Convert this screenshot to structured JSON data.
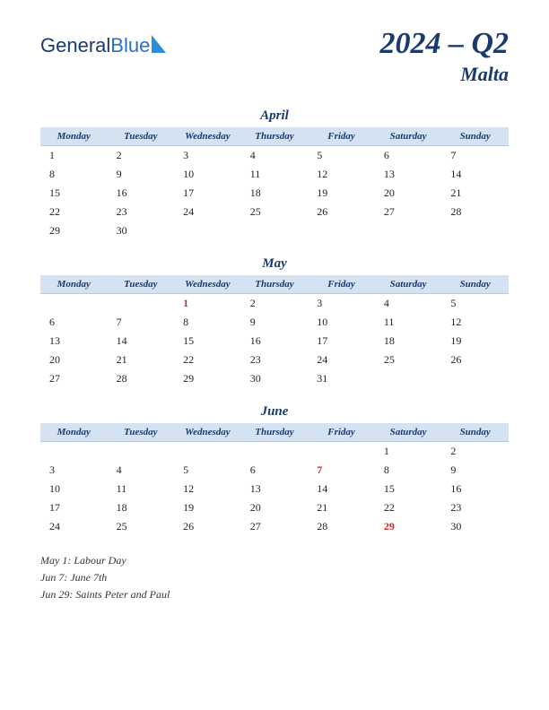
{
  "logo": {
    "part1": "General",
    "part2": "Blue"
  },
  "title": {
    "main": "2024 – Q2",
    "sub": "Malta"
  },
  "day_headers": [
    "Monday",
    "Tuesday",
    "Wednesday",
    "Thursday",
    "Friday",
    "Saturday",
    "Sunday"
  ],
  "colors": {
    "header_bg": "#d5e2f2",
    "text_dark": "#1a3a6e",
    "holiday": "#c92a2a"
  },
  "months": [
    {
      "name": "April",
      "weeks": [
        [
          "1",
          "2",
          "3",
          "4",
          "5",
          "6",
          "7"
        ],
        [
          "8",
          "9",
          "10",
          "11",
          "12",
          "13",
          "14"
        ],
        [
          "15",
          "16",
          "17",
          "18",
          "19",
          "20",
          "21"
        ],
        [
          "22",
          "23",
          "24",
          "25",
          "26",
          "27",
          "28"
        ],
        [
          "29",
          "30",
          "",
          "",
          "",
          "",
          ""
        ]
      ],
      "holidays": []
    },
    {
      "name": "May",
      "weeks": [
        [
          "",
          "",
          "1",
          "2",
          "3",
          "4",
          "5"
        ],
        [
          "6",
          "7",
          "8",
          "9",
          "10",
          "11",
          "12"
        ],
        [
          "13",
          "14",
          "15",
          "16",
          "17",
          "18",
          "19"
        ],
        [
          "20",
          "21",
          "22",
          "23",
          "24",
          "25",
          "26"
        ],
        [
          "27",
          "28",
          "29",
          "30",
          "31",
          "",
          ""
        ]
      ],
      "holidays": [
        "1"
      ]
    },
    {
      "name": "June",
      "weeks": [
        [
          "",
          "",
          "",
          "",
          "",
          "1",
          "2"
        ],
        [
          "3",
          "4",
          "5",
          "6",
          "7",
          "8",
          "9"
        ],
        [
          "10",
          "11",
          "12",
          "13",
          "14",
          "15",
          "16"
        ],
        [
          "17",
          "18",
          "19",
          "20",
          "21",
          "22",
          "23"
        ],
        [
          "24",
          "25",
          "26",
          "27",
          "28",
          "29",
          "30"
        ]
      ],
      "holidays": [
        "7",
        "29"
      ]
    }
  ],
  "footnotes": [
    "May 1: Labour Day",
    "Jun 7: June 7th",
    "Jun 29: Saints Peter and Paul"
  ]
}
